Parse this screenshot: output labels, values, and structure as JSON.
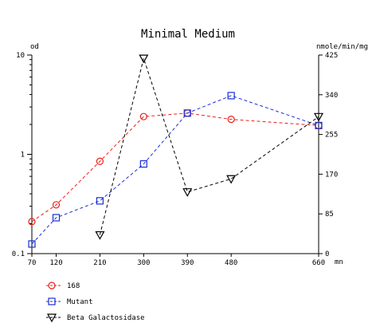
{
  "chart_data": {
    "type": "line",
    "title": "Minimal Medium",
    "x": [
      70,
      120,
      210,
      300,
      390,
      480,
      660
    ],
    "x_ticks": [
      "70",
      "120",
      "210",
      "300",
      "390",
      "480",
      "660"
    ],
    "x_unit": "mn",
    "xlim": [
      70,
      660
    ],
    "y_left": {
      "label": "od",
      "scale": "log",
      "lim": [
        0.1,
        10
      ],
      "ticks": [
        "0.1",
        "1",
        "10"
      ]
    },
    "y_right": {
      "label": "nmole/min/mg",
      "scale": "linear",
      "lim": [
        0,
        425
      ],
      "ticks": [
        "0",
        "85",
        "170",
        "255",
        "340",
        "425"
      ]
    },
    "grid": false,
    "legend_position": "bottom-left",
    "series": [
      {
        "name": "168",
        "axis": "left",
        "marker": "circle",
        "color": "#e8201a",
        "values": [
          0.21,
          0.31,
          0.85,
          2.4,
          2.6,
          2.25,
          1.95
        ]
      },
      {
        "name": "Mutant",
        "axis": "left",
        "marker": "square",
        "color": "#1a2fd6",
        "values": [
          0.125,
          0.23,
          0.34,
          0.8,
          2.6,
          3.9,
          1.95
        ]
      },
      {
        "name": "Beta Galactosidase",
        "axis": "right",
        "marker": "triangle-down",
        "color": "#000000",
        "x": [
          210,
          300,
          390,
          480,
          660
        ],
        "values": [
          40,
          418,
          132,
          160,
          293
        ]
      }
    ]
  }
}
